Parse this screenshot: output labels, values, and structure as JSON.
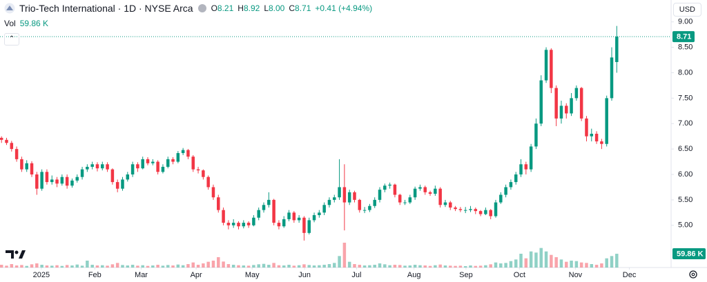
{
  "chart_data": {
    "type": "candlestick",
    "title": "Trio-Tech International · 1D · NYSE Arca",
    "legend": {
      "o_key": "O",
      "open": "8.21",
      "h_key": "H",
      "high": "8.92",
      "l_key": "L",
      "low": "8.00",
      "c_key": "C",
      "close": "8.71",
      "change": "+0.41 (+4.94%)"
    },
    "volume_title": "Vol",
    "volume_last": "59.86 K",
    "currency": "USD",
    "up_color": "#089981",
    "down_color": "#f23645",
    "ylim": [
      4.17,
      9.43
    ],
    "yticks": [
      {
        "value": 5,
        "label": "5.00"
      },
      {
        "value": 5.5,
        "label": "5.50"
      },
      {
        "value": 6,
        "label": "6.00"
      },
      {
        "value": 6.5,
        "label": "6.50"
      },
      {
        "value": 7,
        "label": "7.00"
      },
      {
        "value": 7.5,
        "label": "7.50"
      },
      {
        "value": 8,
        "label": "8.00"
      },
      {
        "value": 8.5,
        "label": "8.50"
      },
      {
        "value": 9,
        "label": "9.00"
      }
    ],
    "xlim": [
      -0.3,
      132.5
    ],
    "xticks": [
      {
        "value": 7.9,
        "label": "2025"
      },
      {
        "value": 18.5,
        "label": "Feb"
      },
      {
        "value": 27.7,
        "label": "Mar"
      },
      {
        "value": 38.6,
        "label": "Apr"
      },
      {
        "value": 49.7,
        "label": "May"
      },
      {
        "value": 60.1,
        "label": "Jun"
      },
      {
        "value": 70.4,
        "label": "Jul"
      },
      {
        "value": 81.8,
        "label": "Aug"
      },
      {
        "value": 92.1,
        "label": "Sep"
      },
      {
        "value": 102.7,
        "label": "Oct"
      },
      {
        "value": 113.8,
        "label": "Nov"
      },
      {
        "value": 124.5,
        "label": "Dec"
      }
    ],
    "grid": false,
    "vlim": [
      0,
      330000
    ],
    "ohlc": [
      [
        6.72,
        6.75,
        6.62,
        6.68
      ],
      [
        6.68,
        6.72,
        6.58,
        6.62
      ],
      [
        6.62,
        6.66,
        6.45,
        6.5
      ],
      [
        6.5,
        6.55,
        6.25,
        6.3
      ],
      [
        6.3,
        6.35,
        6.05,
        6.1
      ],
      [
        6.1,
        6.28,
        6.05,
        6.22
      ],
      [
        6.22,
        6.26,
        5.95,
        6.0
      ],
      [
        6.0,
        6.05,
        5.6,
        5.72
      ],
      [
        5.72,
        6.1,
        5.68,
        6.05
      ],
      [
        6.05,
        6.1,
        5.8,
        5.85
      ],
      [
        5.85,
        5.98,
        5.8,
        5.9
      ],
      [
        5.9,
        5.95,
        5.75,
        5.82
      ],
      [
        5.82,
        6.0,
        5.78,
        5.95
      ],
      [
        5.95,
        6.0,
        5.72,
        5.78
      ],
      [
        5.78,
        5.92,
        5.74,
        5.88
      ],
      [
        5.88,
        6.0,
        5.84,
        5.95
      ],
      [
        5.95,
        6.15,
        5.9,
        6.1
      ],
      [
        6.1,
        6.2,
        6.05,
        6.15
      ],
      [
        6.15,
        6.25,
        6.1,
        6.2
      ],
      [
        6.2,
        6.24,
        6.06,
        6.12
      ],
      [
        6.12,
        6.25,
        6.08,
        6.2
      ],
      [
        6.2,
        6.24,
        6.05,
        6.1
      ],
      [
        6.1,
        6.12,
        5.8,
        5.85
      ],
      [
        5.85,
        5.9,
        5.65,
        5.72
      ],
      [
        5.72,
        5.95,
        5.68,
        5.9
      ],
      [
        5.9,
        6.05,
        5.86,
        6.0
      ],
      [
        6.0,
        6.25,
        5.95,
        6.2
      ],
      [
        6.2,
        6.24,
        6.05,
        6.12
      ],
      [
        6.12,
        6.35,
        6.1,
        6.3
      ],
      [
        6.3,
        6.34,
        6.18,
        6.22
      ],
      [
        6.22,
        6.3,
        6.18,
        6.25
      ],
      [
        6.25,
        6.28,
        6.0,
        6.05
      ],
      [
        6.05,
        6.2,
        6.02,
        6.15
      ],
      [
        6.15,
        6.35,
        6.12,
        6.3
      ],
      [
        6.3,
        6.34,
        6.2,
        6.25
      ],
      [
        6.25,
        6.46,
        6.22,
        6.42
      ],
      [
        6.42,
        6.52,
        6.38,
        6.48
      ],
      [
        6.48,
        6.5,
        6.3,
        6.35
      ],
      [
        6.35,
        6.38,
        6.05,
        6.1
      ],
      [
        6.1,
        6.15,
        6.02,
        6.08
      ],
      [
        6.08,
        6.1,
        5.9,
        5.95
      ],
      [
        5.95,
        5.98,
        5.7,
        5.75
      ],
      [
        5.75,
        5.8,
        5.5,
        5.55
      ],
      [
        5.55,
        5.6,
        5.25,
        5.3
      ],
      [
        5.3,
        5.35,
        5.0,
        5.05
      ],
      [
        5.05,
        5.1,
        4.92,
        5.0
      ],
      [
        5.0,
        5.12,
        4.95,
        5.05
      ],
      [
        5.05,
        5.08,
        4.92,
        4.98
      ],
      [
        4.98,
        5.1,
        4.94,
        5.05
      ],
      [
        5.05,
        5.08,
        4.95,
        5.0
      ],
      [
        5.0,
        5.2,
        4.98,
        5.15
      ],
      [
        5.15,
        5.35,
        5.1,
        5.3
      ],
      [
        5.3,
        5.45,
        5.25,
        5.4
      ],
      [
        5.4,
        5.65,
        5.35,
        5.5
      ],
      [
        5.5,
        5.52,
        5.0,
        5.05
      ],
      [
        5.05,
        5.1,
        4.92,
        4.98
      ],
      [
        4.98,
        5.18,
        4.95,
        5.12
      ],
      [
        5.12,
        5.3,
        5.08,
        5.25
      ],
      [
        5.25,
        5.28,
        5.05,
        5.1
      ],
      [
        5.1,
        5.2,
        5.05,
        5.15
      ],
      [
        5.15,
        5.18,
        4.7,
        4.85
      ],
      [
        4.85,
        5.15,
        4.82,
        5.1
      ],
      [
        5.1,
        5.25,
        5.06,
        5.2
      ],
      [
        5.2,
        5.3,
        5.15,
        5.25
      ],
      [
        5.25,
        5.45,
        5.2,
        5.4
      ],
      [
        5.4,
        5.55,
        5.35,
        5.5
      ],
      [
        5.5,
        5.6,
        5.45,
        5.55
      ],
      [
        5.55,
        6.3,
        5.5,
        5.75
      ],
      [
        5.75,
        6.2,
        4.9,
        5.45
      ],
      [
        5.45,
        5.7,
        5.4,
        5.65
      ],
      [
        5.65,
        5.68,
        5.45,
        5.5
      ],
      [
        5.5,
        5.52,
        5.25,
        5.3
      ],
      [
        5.3,
        5.36,
        5.24,
        5.3
      ],
      [
        5.3,
        5.42,
        5.26,
        5.38
      ],
      [
        5.38,
        5.55,
        5.34,
        5.5
      ],
      [
        5.5,
        5.75,
        5.45,
        5.7
      ],
      [
        5.7,
        5.82,
        5.65,
        5.78
      ],
      [
        5.78,
        5.84,
        5.72,
        5.8
      ],
      [
        5.8,
        5.82,
        5.55,
        5.6
      ],
      [
        5.6,
        5.62,
        5.4,
        5.45
      ],
      [
        5.45,
        5.5,
        5.4,
        5.45
      ],
      [
        5.45,
        5.6,
        5.42,
        5.55
      ],
      [
        5.55,
        5.76,
        5.5,
        5.72
      ],
      [
        5.72,
        5.8,
        5.68,
        5.75
      ],
      [
        5.75,
        5.78,
        5.6,
        5.65
      ],
      [
        5.65,
        5.68,
        5.58,
        5.62
      ],
      [
        5.62,
        5.78,
        5.58,
        5.72
      ],
      [
        5.72,
        5.75,
        5.35,
        5.4
      ],
      [
        5.4,
        5.5,
        5.36,
        5.45
      ],
      [
        5.45,
        5.48,
        5.3,
        5.35
      ],
      [
        5.35,
        5.38,
        5.28,
        5.32
      ],
      [
        5.32,
        5.36,
        5.26,
        5.3
      ],
      [
        5.3,
        5.36,
        5.24,
        5.3
      ],
      [
        5.3,
        5.38,
        5.26,
        5.32
      ],
      [
        5.32,
        5.35,
        5.22,
        5.28
      ],
      [
        5.28,
        5.3,
        5.18,
        5.22
      ],
      [
        5.22,
        5.35,
        5.2,
        5.3
      ],
      [
        5.3,
        5.32,
        5.12,
        5.18
      ],
      [
        5.18,
        5.5,
        5.15,
        5.45
      ],
      [
        5.45,
        5.65,
        5.42,
        5.6
      ],
      [
        5.6,
        5.8,
        5.55,
        5.75
      ],
      [
        5.75,
        5.9,
        5.7,
        5.85
      ],
      [
        5.85,
        6.05,
        5.8,
        6.0
      ],
      [
        6.0,
        6.3,
        5.95,
        6.2
      ],
      [
        6.2,
        6.25,
        6.0,
        6.1
      ],
      [
        6.1,
        6.6,
        6.05,
        6.55
      ],
      [
        6.55,
        7.1,
        6.5,
        7.0
      ],
      [
        7.0,
        7.95,
        6.95,
        7.85
      ],
      [
        7.85,
        8.5,
        7.8,
        8.45
      ],
      [
        8.45,
        8.48,
        7.6,
        7.7
      ],
      [
        7.7,
        7.75,
        6.95,
        7.1
      ],
      [
        7.1,
        7.45,
        7.0,
        7.35
      ],
      [
        7.35,
        7.4,
        7.1,
        7.2
      ],
      [
        7.2,
        7.6,
        7.15,
        7.5
      ],
      [
        7.5,
        7.75,
        7.45,
        7.7
      ],
      [
        7.7,
        7.72,
        7.05,
        7.1
      ],
      [
        7.1,
        7.15,
        6.65,
        6.75
      ],
      [
        6.75,
        6.9,
        6.65,
        6.8
      ],
      [
        6.8,
        6.85,
        6.6,
        6.65
      ],
      [
        6.65,
        6.7,
        6.5,
        6.6
      ],
      [
        6.6,
        7.55,
        6.55,
        7.5
      ],
      [
        7.5,
        8.5,
        7.45,
        8.3
      ],
      [
        8.21,
        8.92,
        8.0,
        8.71
      ]
    ],
    "volume": [
      12000,
      8000,
      15000,
      9000,
      11000,
      7000,
      14000,
      18000,
      12000,
      9000,
      8000,
      10000,
      7000,
      11000,
      9000,
      13000,
      8000,
      30000,
      12000,
      9000,
      10000,
      8000,
      14000,
      20000,
      11000,
      9000,
      12000,
      8000,
      10000,
      7000,
      9000,
      12000,
      8000,
      11000,
      9000,
      13000,
      10000,
      15000,
      22000,
      12000,
      18000,
      25000,
      30000,
      45000,
      26000,
      15000,
      12000,
      10000,
      9000,
      8000,
      11000,
      14000,
      16000,
      12000,
      20000,
      10000,
      9000,
      12000,
      8000,
      10000,
      14000,
      11000,
      9000,
      10000,
      12000,
      15000,
      20000,
      50000,
      108000,
      25000,
      15000,
      12000,
      9000,
      10000,
      12000,
      18000,
      14000,
      10000,
      12000,
      11000,
      8000,
      9000,
      12000,
      10000,
      9000,
      7000,
      10000,
      13000,
      9000,
      8000,
      7000,
      8000,
      6000,
      9000,
      7000,
      8000,
      10000,
      14000,
      22000,
      18000,
      20000,
      28000,
      35000,
      60000,
      40000,
      70000,
      65000,
      85000,
      70000,
      55000,
      45000,
      35000,
      25000,
      30000,
      28000,
      22000,
      20000,
      15000,
      12000,
      18000,
      40000,
      50000,
      59860
    ]
  }
}
